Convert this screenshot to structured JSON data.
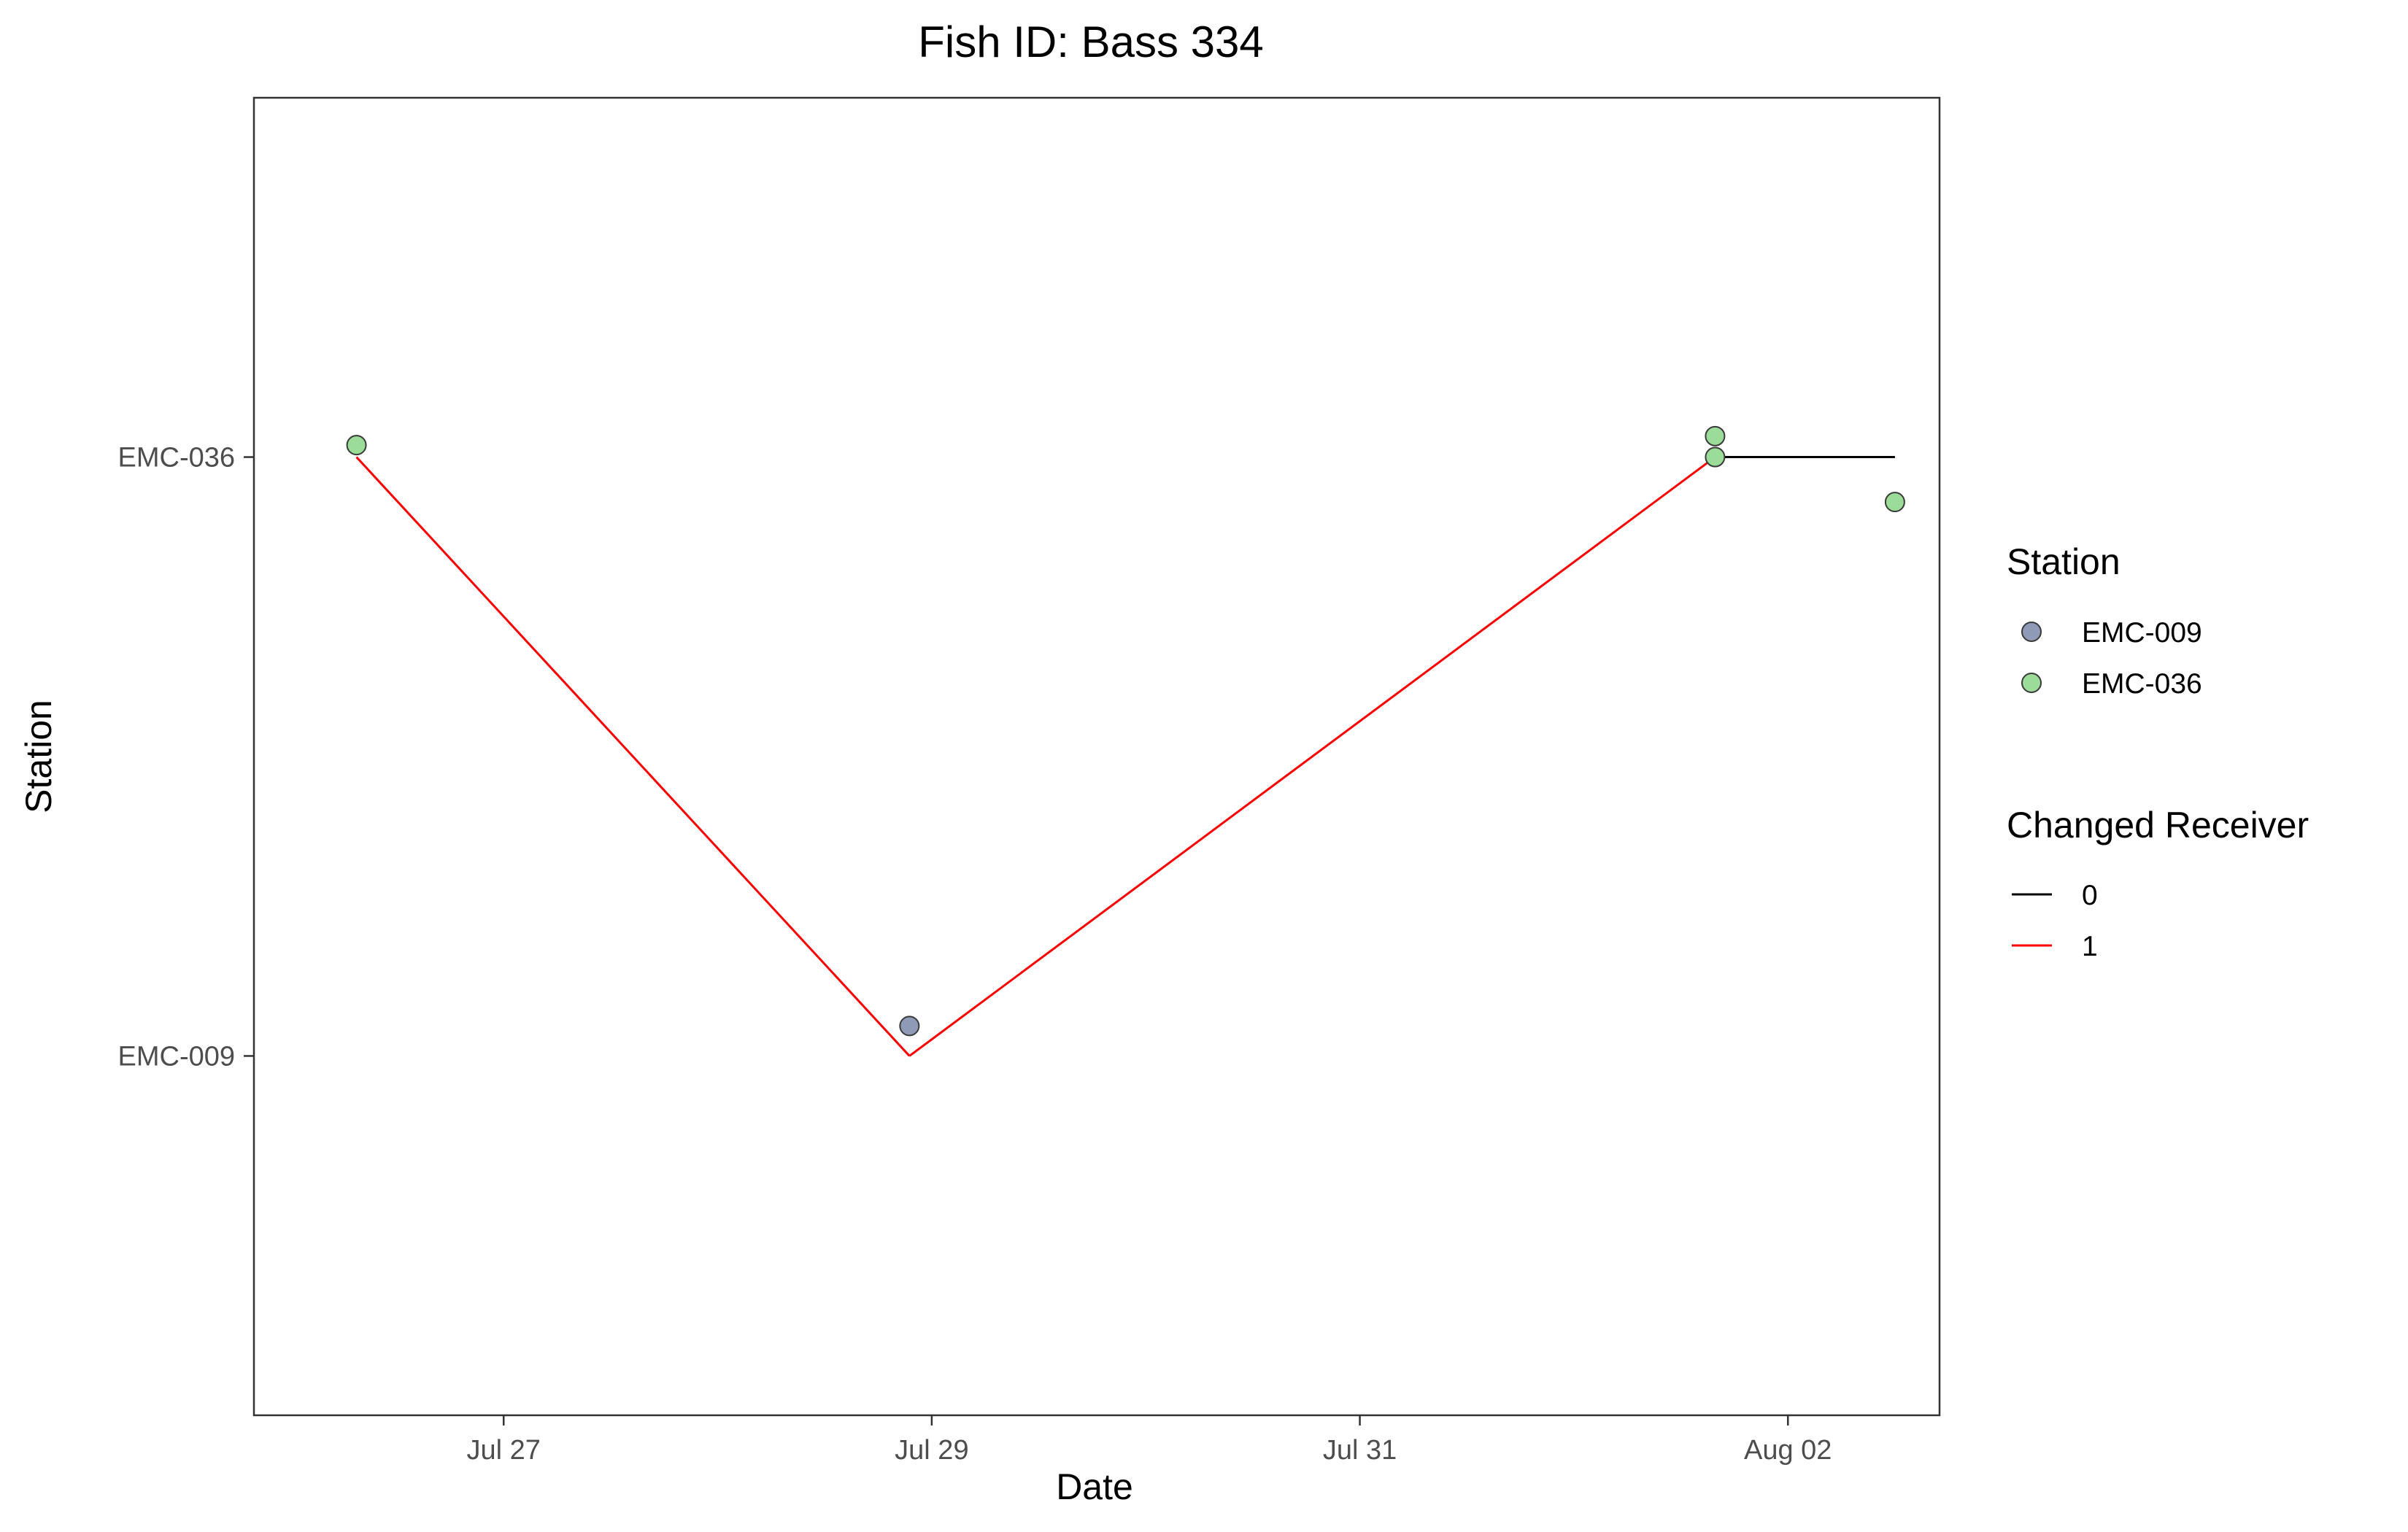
{
  "chart_data": {
    "type": "line",
    "title": "Fish ID: Bass 334",
    "xlabel": "Date",
    "ylabel": "Station",
    "x_ticks": [
      "Jul 27",
      "Jul 29",
      "Jul 31",
      "Aug 02"
    ],
    "x_tick_dates": [
      "2023-07-27",
      "2023-07-29",
      "2023-07-31",
      "2023-08-02"
    ],
    "y_categories": [
      "EMC-009",
      "EMC-036"
    ],
    "xlim": [
      "2023-07-25T20:00",
      "2023-08-02T17:00"
    ],
    "ylim": [
      0.4,
      2.6
    ],
    "grid": false,
    "legend_position": "right",
    "points": [
      {
        "date": "2023-07-26T07:30",
        "station": "EMC-036",
        "y": 2.02
      },
      {
        "date": "2023-07-28T21:30",
        "station": "EMC-009",
        "y": 1.05
      },
      {
        "date": "2023-08-01T15:50",
        "station": "EMC-036",
        "y": 2.035
      },
      {
        "date": "2023-08-01T15:50",
        "station": "EMC-036",
        "y": 2.0
      },
      {
        "date": "2023-08-02T12:00",
        "station": "EMC-036",
        "y": 1.925
      }
    ],
    "segments": [
      {
        "changed": "1",
        "from": {
          "date": "2023-07-26T07:30",
          "y": 2
        },
        "to": {
          "date": "2023-07-28T21:30",
          "y": 1
        }
      },
      {
        "changed": "1",
        "from": {
          "date": "2023-07-28T21:30",
          "y": 1
        },
        "to": {
          "date": "2023-08-01T15:50",
          "y": 2
        }
      },
      {
        "changed": "0",
        "from": {
          "date": "2023-08-01T15:50",
          "y": 2
        },
        "to": {
          "date": "2023-08-02T12:00",
          "y": 2
        }
      }
    ],
    "station_legend": {
      "title": "Station",
      "items": [
        {
          "label": "EMC-009",
          "color": "#8f9bb6"
        },
        {
          "label": "EMC-036",
          "color": "#9bdc98"
        }
      ]
    },
    "receiver_legend": {
      "title": "Changed Receiver",
      "items": [
        {
          "label": "0",
          "color": "#000000"
        },
        {
          "label": "1",
          "color": "#ff0000"
        }
      ]
    }
  }
}
